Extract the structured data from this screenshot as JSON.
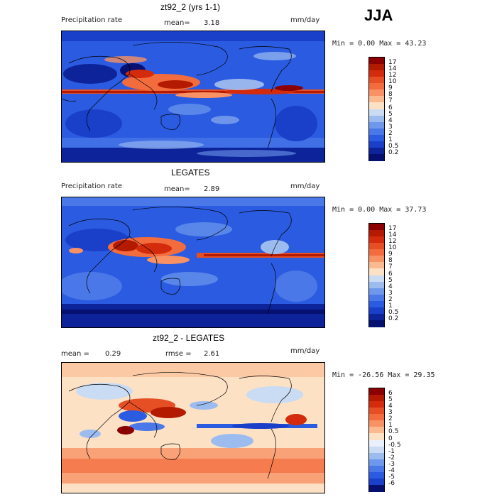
{
  "season": "JJA",
  "panels": [
    {
      "title": "zt92_2 (yrs 1-1)",
      "left_label": "Precipitation rate",
      "mean_label": "mean=",
      "mean_value": "3.18",
      "rmse_label": "",
      "rmse_value": "",
      "units": "mm/day",
      "minmax": "Min =    0.00 Max =   43.23"
    },
    {
      "title": "LEGATES",
      "left_label": "Precipitation rate",
      "mean_label": "mean=",
      "mean_value": "2.89",
      "rmse_label": "",
      "rmse_value": "",
      "units": "mm/day",
      "minmax": "Min =    0.00 Max =   37.73"
    },
    {
      "title": "zt92_2 - LEGATES",
      "left_label": "mean =",
      "left_value": "0.29",
      "rmse_label": "rmse =",
      "rmse_value": "2.61",
      "units": "mm/day",
      "minmax": "Min = -26.56 Max =  29.35"
    }
  ],
  "colorbars": {
    "precip": {
      "levels": [
        "17",
        "14",
        "12",
        "10",
        "9",
        "8",
        "7",
        "6",
        "5",
        "4",
        "3",
        "2",
        "1",
        "0.5",
        "0.2"
      ],
      "colors": [
        "#8b0000",
        "#b41a00",
        "#d32b0c",
        "#e64e23",
        "#f26c3d",
        "#f89163",
        "#fbb98f",
        "#fde1c5",
        "#c9dcf4",
        "#9cbcf0",
        "#6e98ec",
        "#4a78e8",
        "#2b5be0",
        "#1a3fc8",
        "#0d2399",
        "#061070"
      ]
    },
    "diff": {
      "levels": [
        "6",
        "5",
        "4",
        "3",
        "2",
        "1",
        "0.5",
        "0",
        "-0.5",
        "-1",
        "-2",
        "-3",
        "-4",
        "-5",
        "-6"
      ],
      "colors": [
        "#8b0000",
        "#b41a00",
        "#d32b0c",
        "#e64e23",
        "#f26c3d",
        "#f89163",
        "#fbb98f",
        "#fde1c5",
        "#e9f0fb",
        "#c9dcf4",
        "#9cbcf0",
        "#6e98ec",
        "#4a78e8",
        "#2b5be0",
        "#1a3fc8",
        "#061070"
      ]
    }
  },
  "chart_data": [
    {
      "type": "heatmap",
      "title": "zt92_2 (yrs 1-1)",
      "variable": "Precipitation rate",
      "units": "mm/day",
      "mean": 3.18,
      "min": 0.0,
      "max": 43.23,
      "contour_levels": [
        0.2,
        0.5,
        1,
        2,
        3,
        4,
        5,
        6,
        7,
        8,
        9,
        10,
        12,
        14,
        17
      ]
    },
    {
      "type": "heatmap",
      "title": "LEGATES",
      "variable": "Precipitation rate",
      "units": "mm/day",
      "mean": 2.89,
      "min": 0.0,
      "max": 37.73,
      "contour_levels": [
        0.2,
        0.5,
        1,
        2,
        3,
        4,
        5,
        6,
        7,
        8,
        9,
        10,
        12,
        14,
        17
      ]
    },
    {
      "type": "heatmap",
      "title": "zt92_2 - LEGATES",
      "units": "mm/day",
      "mean": 0.29,
      "rmse": 2.61,
      "min": -26.56,
      "max": 29.35,
      "contour_levels": [
        -6,
        -5,
        -4,
        -3,
        -2,
        -1,
        -0.5,
        0,
        0.5,
        1,
        2,
        3,
        4,
        5,
        6
      ]
    }
  ]
}
